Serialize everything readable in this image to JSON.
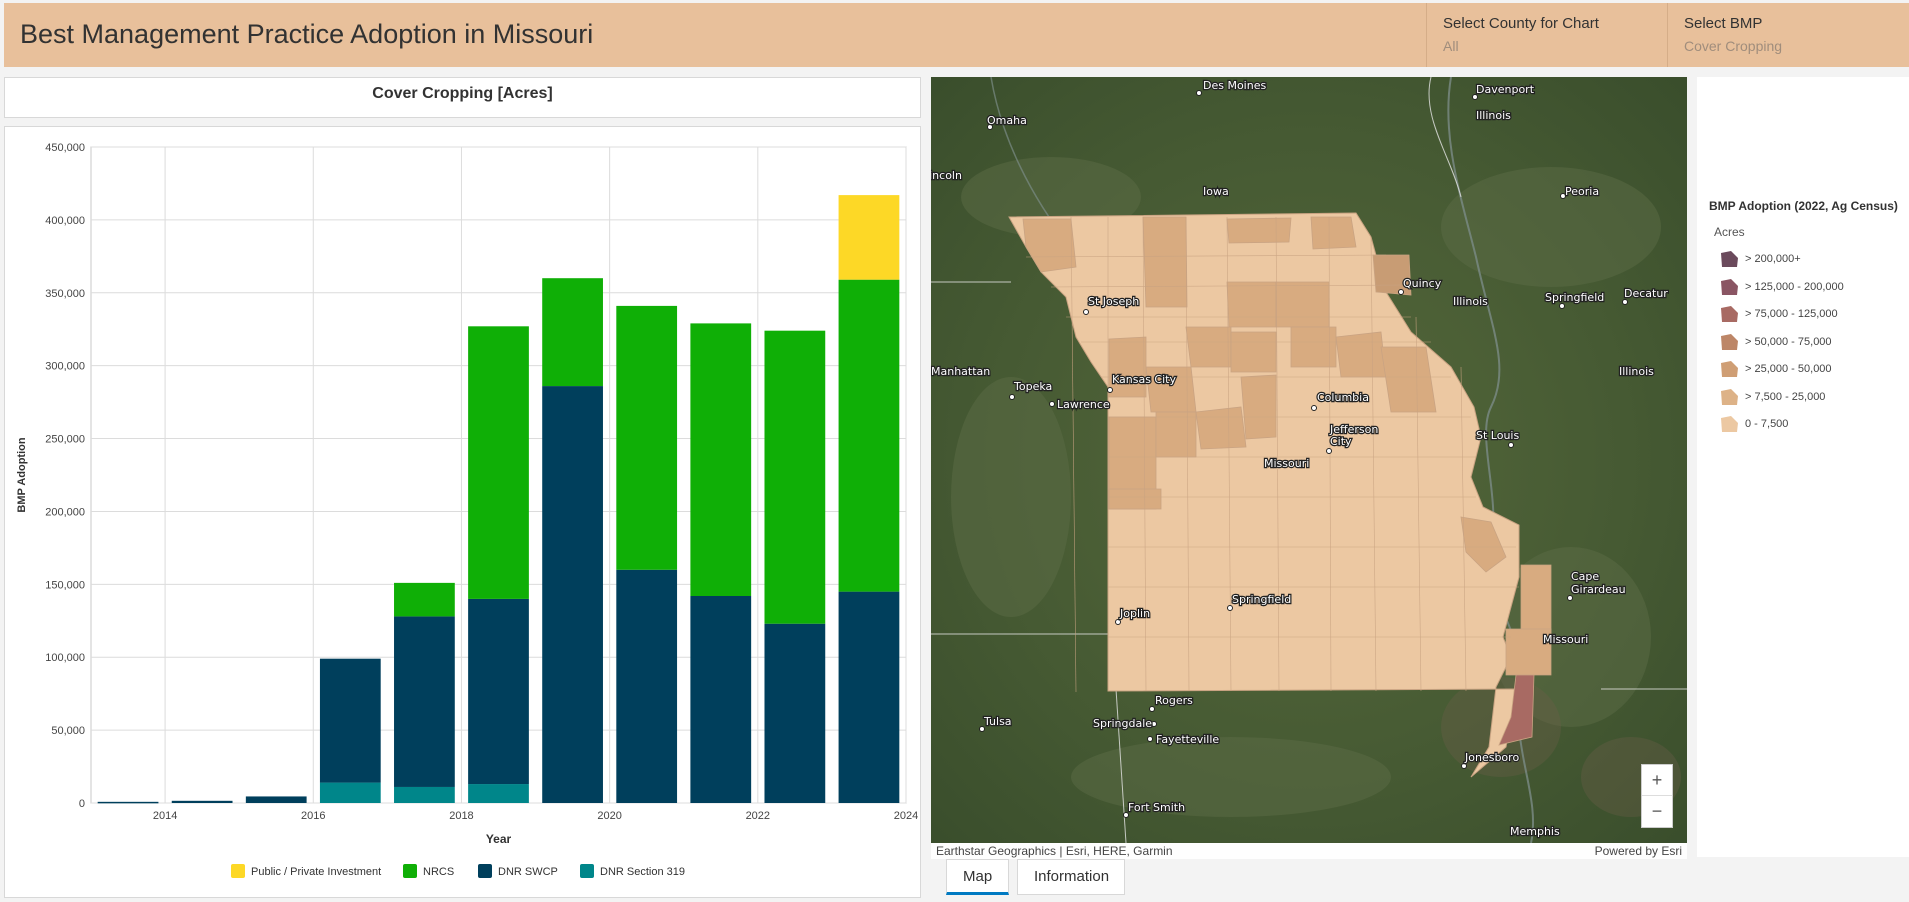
{
  "header": {
    "title": "Best Management Practice Adoption in Missouri",
    "county_label": "Select County for Chart",
    "county_value": "All",
    "bmp_label": "Select BMP",
    "bmp_value": "Cover Cropping"
  },
  "chart_title": "Cover Cropping [Acres]",
  "chart_data": {
    "type": "bar",
    "stacked": true,
    "xlabel": "Year",
    "ylabel": "BMP Adoption",
    "xlim": [
      2013,
      2024
    ],
    "ylim": [
      0,
      450000
    ],
    "x_ticks": [
      "2014",
      "2016",
      "2018",
      "2020",
      "2022",
      "2024"
    ],
    "y_ticks": [
      "0",
      "50,000",
      "100,000",
      "150,000",
      "200,000",
      "250,000",
      "300,000",
      "350,000",
      "400,000",
      "450,000"
    ],
    "categories": [
      2013,
      2014,
      2015,
      2016,
      2017,
      2018,
      2019,
      2020,
      2021,
      2022,
      2023
    ],
    "series": [
      {
        "name": "DNR Section 319",
        "color": "#00868a",
        "values": [
          0,
          0,
          0,
          14000,
          11000,
          13000,
          0,
          0,
          0,
          0,
          0
        ]
      },
      {
        "name": "DNR SWCP",
        "color": "#003f5c",
        "values": [
          800,
          1500,
          4500,
          85000,
          117000,
          127000,
          286000,
          160000,
          142000,
          123000,
          145000
        ]
      },
      {
        "name": "NRCS",
        "color": "#0faf06",
        "values": [
          0,
          0,
          0,
          0,
          23000,
          187000,
          74000,
          181000,
          187000,
          201000,
          214000
        ]
      },
      {
        "name": "Public / Private Investment",
        "color": "#fdd826",
        "values": [
          0,
          0,
          0,
          0,
          0,
          0,
          0,
          0,
          0,
          0,
          58000
        ]
      }
    ],
    "legend_order": [
      "Public / Private Investment",
      "NRCS",
      "DNR SWCP",
      "DNR Section 319"
    ],
    "legend": "bottom",
    "grid": true
  },
  "map": {
    "attribution": "Earthstar Geographics | Esri, HERE, Garmin",
    "powered_by": "Powered by Esri",
    "labels": {
      "des_moines": "Des Moines",
      "davenport": "Davenport",
      "omaha": "Omaha",
      "illinois_top": "Illinois",
      "lincoln": "Lincoln",
      "iowa": "Iowa",
      "peoria": "Peoria",
      "quincy": "Quincy",
      "illinois_mid": "Illinois",
      "springfield_il": "Springfield",
      "decatur": "Decatur",
      "st_joseph": "St Joseph",
      "manhattan": "Manhattan",
      "topeka": "Topeka",
      "kansas_city": "Kansas City",
      "lawrence": "Lawrence",
      "illinois_right": "Illinois",
      "columbia": "Columbia",
      "jefferson_1": "Jefferson",
      "jefferson_2": "City",
      "missouri": "Missouri",
      "st_louis": "St Louis",
      "cape_1": "Cape",
      "cape_2": "Girardeau",
      "joplin": "Joplin",
      "springfield_mo": "Springfield",
      "missouri_se": "Missouri",
      "rogers": "Rogers",
      "tulsa": "Tulsa",
      "springdale": "Springdale",
      "fayetteville": "Fayetteville",
      "jonesboro": "Jonesboro",
      "fort_smith": "Fort Smith",
      "memphis": "Memphis"
    },
    "zoom_in": "+",
    "zoom_out": "−"
  },
  "legend": {
    "title": "BMP Adoption (2022, Ag Census)",
    "subtitle": "Acres",
    "items": [
      {
        "label": "> 200,000+",
        "color": "#6b4a5c"
      },
      {
        "label": "> 125,000 - 200,000",
        "color": "#8a5563"
      },
      {
        "label": "> 75,000 - 125,000",
        "color": "#a86a63"
      },
      {
        "label": "> 50,000 - 75,000",
        "color": "#bd8667"
      },
      {
        "label": "> 25,000 - 50,000",
        "color": "#cf9e74"
      },
      {
        "label": "> 7,500 - 25,000",
        "color": "#ddb287"
      },
      {
        "label": "0 - 7,500",
        "color": "#ecc8a2"
      }
    ]
  },
  "tabs": {
    "map": "Map",
    "information": "Information"
  }
}
